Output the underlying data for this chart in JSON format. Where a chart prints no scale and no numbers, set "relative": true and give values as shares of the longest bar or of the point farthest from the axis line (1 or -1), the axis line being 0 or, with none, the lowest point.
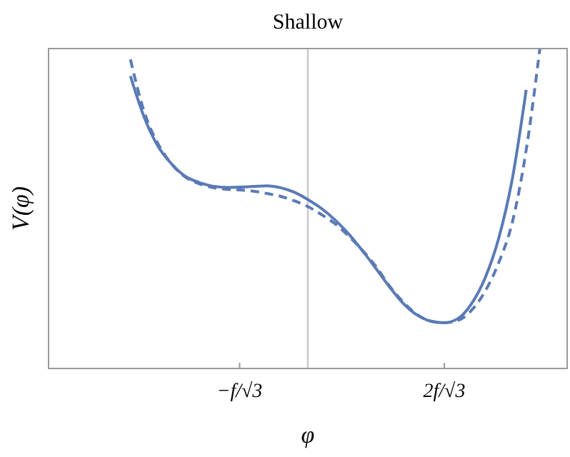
{
  "chart_data": {
    "type": "line",
    "title": "Shallow",
    "xlabel": "φ",
    "ylabel": "V(φ)",
    "relative": true,
    "marker": "none",
    "categories": [
      null,
      null,
      null,
      null,
      null,
      null,
      null,
      null,
      null,
      null,
      null,
      null,
      null,
      null,
      "−f/√3",
      null,
      null,
      null,
      null,
      null,
      null,
      null,
      null,
      null,
      null,
      null,
      null,
      null,
      null,
      "2f/√3",
      null,
      null,
      null,
      null,
      null,
      null,
      null,
      null,
      null
    ],
    "series": [
      {
        "color": "#5a7ab6",
        "line_style": "solid",
        "values": [
          null,
          null,
          null,
          null,
          null,
          null,
          0.914,
          0.786,
          0.696,
          0.64,
          0.601,
          0.582,
          0.57,
          0.566,
          0.567,
          0.569,
          0.571,
          0.565,
          0.551,
          0.528,
          0.5,
          0.464,
          0.42,
          0.368,
          0.312,
          0.254,
          0.203,
          0.167,
          0.148,
          0.143,
          0.156,
          0.203,
          0.284,
          0.409,
          0.597,
          0.871,
          null,
          null,
          null
        ]
      },
      {
        "color": "#5a7ab6",
        "line_style": "dashed",
        "values": [
          null,
          null,
          null,
          null,
          null,
          null,
          0.966,
          0.803,
          0.704,
          0.64,
          0.599,
          0.578,
          0.566,
          0.56,
          0.558,
          0.554,
          0.547,
          0.538,
          0.524,
          0.506,
          0.481,
          0.452,
          0.413,
          0.369,
          0.318,
          0.257,
          0.207,
          0.169,
          0.148,
          0.143,
          0.15,
          0.182,
          0.242,
          0.332,
          0.46,
          0.683,
          1,
          null,
          null
        ]
      }
    ]
  }
}
